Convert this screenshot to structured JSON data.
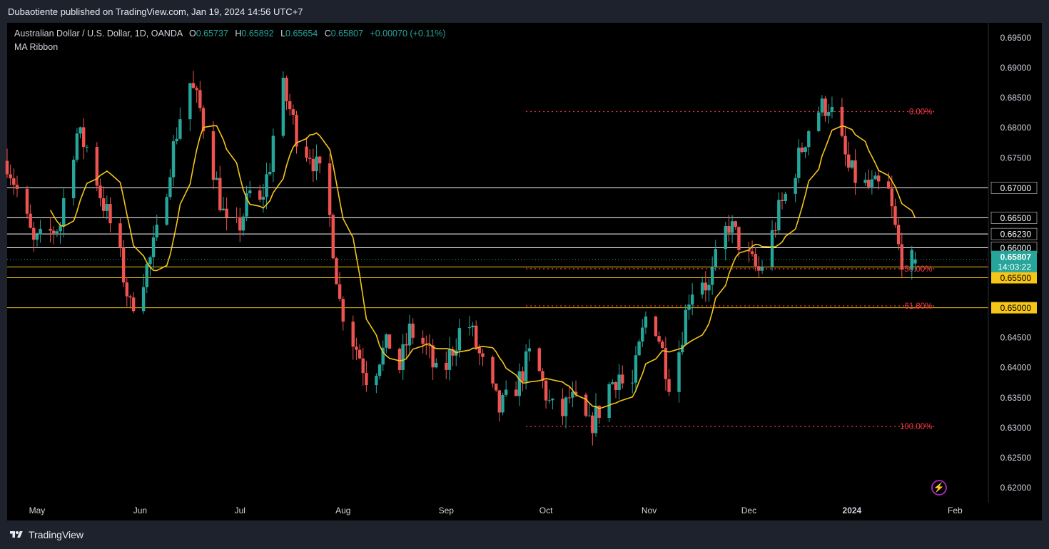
{
  "header": {
    "published": "Dubaotiente published on TradingView.com, Jan 19, 2024 14:56 UTC+7"
  },
  "legend": {
    "symbol": "Australian Dollar / U.S. Dollar, 1D, OANDA",
    "o_label": "O",
    "o": "0.65737",
    "h_label": "H",
    "h": "0.65892",
    "l_label": "L",
    "l": "0.65654",
    "c_label": "C",
    "c": "0.65807",
    "change": "+0.00070 (+0.11%)",
    "indicator": "MA Ribbon"
  },
  "footer": {
    "brand": "TradingView"
  },
  "colors": {
    "up": "#26a69a",
    "down": "#ef5350",
    "ma": "#f5c518",
    "fib": "#f23645",
    "level_white": "#ffffff",
    "level_yellow": "#f5c518",
    "background": "#000000"
  },
  "chart_data": {
    "type": "candlestick",
    "title": "Australian Dollar / U.S. Dollar, 1D, OANDA",
    "y_range": [
      0.62,
      0.6975
    ],
    "y_ticks": [
      "0.69500",
      "0.69000",
      "0.68500",
      "0.68000",
      "0.67500",
      "0.67000",
      "0.66500",
      "0.66000",
      "0.65500",
      "0.65000",
      "0.64500",
      "0.64000",
      "0.63500",
      "0.63000",
      "0.62500",
      "0.62000"
    ],
    "x_ticks": [
      {
        "label": "May",
        "day": 3,
        "bold": false
      },
      {
        "label": "Jun",
        "day": 34,
        "bold": false
      },
      {
        "label": "Jul",
        "day": 64,
        "bold": false
      },
      {
        "label": "Aug",
        "day": 95,
        "bold": false
      },
      {
        "label": "Sep",
        "day": 126,
        "bold": false
      },
      {
        "label": "Oct",
        "day": 156,
        "bold": false
      },
      {
        "label": "Nov",
        "day": 187,
        "bold": false
      },
      {
        "label": "Dec",
        "day": 217,
        "bold": false
      },
      {
        "label": "2024",
        "day": 248,
        "bold": true
      },
      {
        "label": "Feb",
        "day": 279,
        "bold": false
      }
    ],
    "x_day_range": [
      -6,
      289
    ],
    "horizontal_levels": [
      {
        "price": 0.67,
        "color": "white",
        "label": "0.67000"
      },
      {
        "price": 0.665,
        "color": "white",
        "label": "0.66500"
      },
      {
        "price": 0.6623,
        "color": "white",
        "label": "0.66230"
      },
      {
        "price": 0.66,
        "color": "white",
        "label": "0.66000"
      },
      {
        "price": 0.6568,
        "color": "yellow",
        "label": "0.65680"
      },
      {
        "price": 0.655,
        "color": "yellow",
        "label": "0.65500"
      },
      {
        "price": 0.65,
        "color": "yellow",
        "label": "0.65000"
      }
    ],
    "current_price": {
      "value": 0.65807,
      "label": "0.65807",
      "countdown": "14:03:22"
    },
    "fib": {
      "start_day": 150,
      "end_day": 273,
      "levels": [
        {
          "label": "0.00%",
          "price": 0.6827
        },
        {
          "label": "50.00%",
          "price": 0.6565
        },
        {
          "label": "61.80%",
          "price": 0.6503
        },
        {
          "label": "100.00%",
          "price": 0.6302
        }
      ]
    },
    "anchors": [
      [
        -6,
        0.6745
      ],
      [
        -2,
        0.668
      ],
      [
        2,
        0.6605
      ],
      [
        6,
        0.662
      ],
      [
        10,
        0.664
      ],
      [
        12,
        0.672
      ],
      [
        15,
        0.679
      ],
      [
        19,
        0.676
      ],
      [
        22,
        0.669
      ],
      [
        25,
        0.664
      ],
      [
        28,
        0.658
      ],
      [
        31,
        0.65
      ],
      [
        34,
        0.654
      ],
      [
        37,
        0.658
      ],
      [
        40,
        0.664
      ],
      [
        43,
        0.674
      ],
      [
        46,
        0.682
      ],
      [
        49,
        0.6875
      ],
      [
        52,
        0.683
      ],
      [
        55,
        0.676
      ],
      [
        58,
        0.668
      ],
      [
        61,
        0.661
      ],
      [
        64,
        0.664
      ],
      [
        67,
        0.669
      ],
      [
        70,
        0.667
      ],
      [
        73,
        0.674
      ],
      [
        76,
        0.688
      ],
      [
        79,
        0.683
      ],
      [
        82,
        0.677
      ],
      [
        85,
        0.676
      ],
      [
        88,
        0.672
      ],
      [
        91,
        0.665
      ],
      [
        94,
        0.651
      ],
      [
        97,
        0.646
      ],
      [
        100,
        0.642
      ],
      [
        103,
        0.637
      ],
      [
        106,
        0.642
      ],
      [
        109,
        0.644
      ],
      [
        112,
        0.64
      ],
      [
        115,
        0.646
      ],
      [
        118,
        0.645
      ],
      [
        121,
        0.642
      ],
      [
        124,
        0.637
      ],
      [
        127,
        0.642
      ],
      [
        130,
        0.646
      ],
      [
        133,
        0.647
      ],
      [
        136,
        0.642
      ],
      [
        139,
        0.637
      ],
      [
        142,
        0.633
      ],
      [
        145,
        0.635
      ],
      [
        148,
        0.638
      ],
      [
        151,
        0.642
      ],
      [
        154,
        0.639
      ],
      [
        157,
        0.634
      ],
      [
        160,
        0.631
      ],
      [
        163,
        0.635
      ],
      [
        166,
        0.633
      ],
      [
        169,
        0.63
      ],
      [
        172,
        0.633
      ],
      [
        175,
        0.637
      ],
      [
        178,
        0.639
      ],
      [
        181,
        0.634
      ],
      [
        184,
        0.643
      ],
      [
        187,
        0.651
      ],
      [
        190,
        0.645
      ],
      [
        193,
        0.638
      ],
      [
        196,
        0.643
      ],
      [
        199,
        0.652
      ],
      [
        202,
        0.656
      ],
      [
        205,
        0.653
      ],
      [
        208,
        0.66
      ],
      [
        211,
        0.664
      ],
      [
        214,
        0.661
      ],
      [
        217,
        0.658
      ],
      [
        220,
        0.656
      ],
      [
        223,
        0.66
      ],
      [
        226,
        0.666
      ],
      [
        229,
        0.67
      ],
      [
        232,
        0.675
      ],
      [
        235,
        0.68
      ],
      [
        238,
        0.683
      ],
      [
        241,
        0.684
      ],
      [
        244,
        0.679
      ],
      [
        247,
        0.673
      ],
      [
        250,
        0.671
      ],
      [
        253,
        0.67
      ],
      [
        256,
        0.67
      ],
      [
        259,
        0.669
      ],
      [
        262,
        0.66
      ],
      [
        264,
        0.657
      ],
      [
        266,
        0.6575
      ],
      [
        267,
        0.6581
      ]
    ],
    "ma": {
      "name": "MA Ribbon",
      "period": 10
    }
  }
}
